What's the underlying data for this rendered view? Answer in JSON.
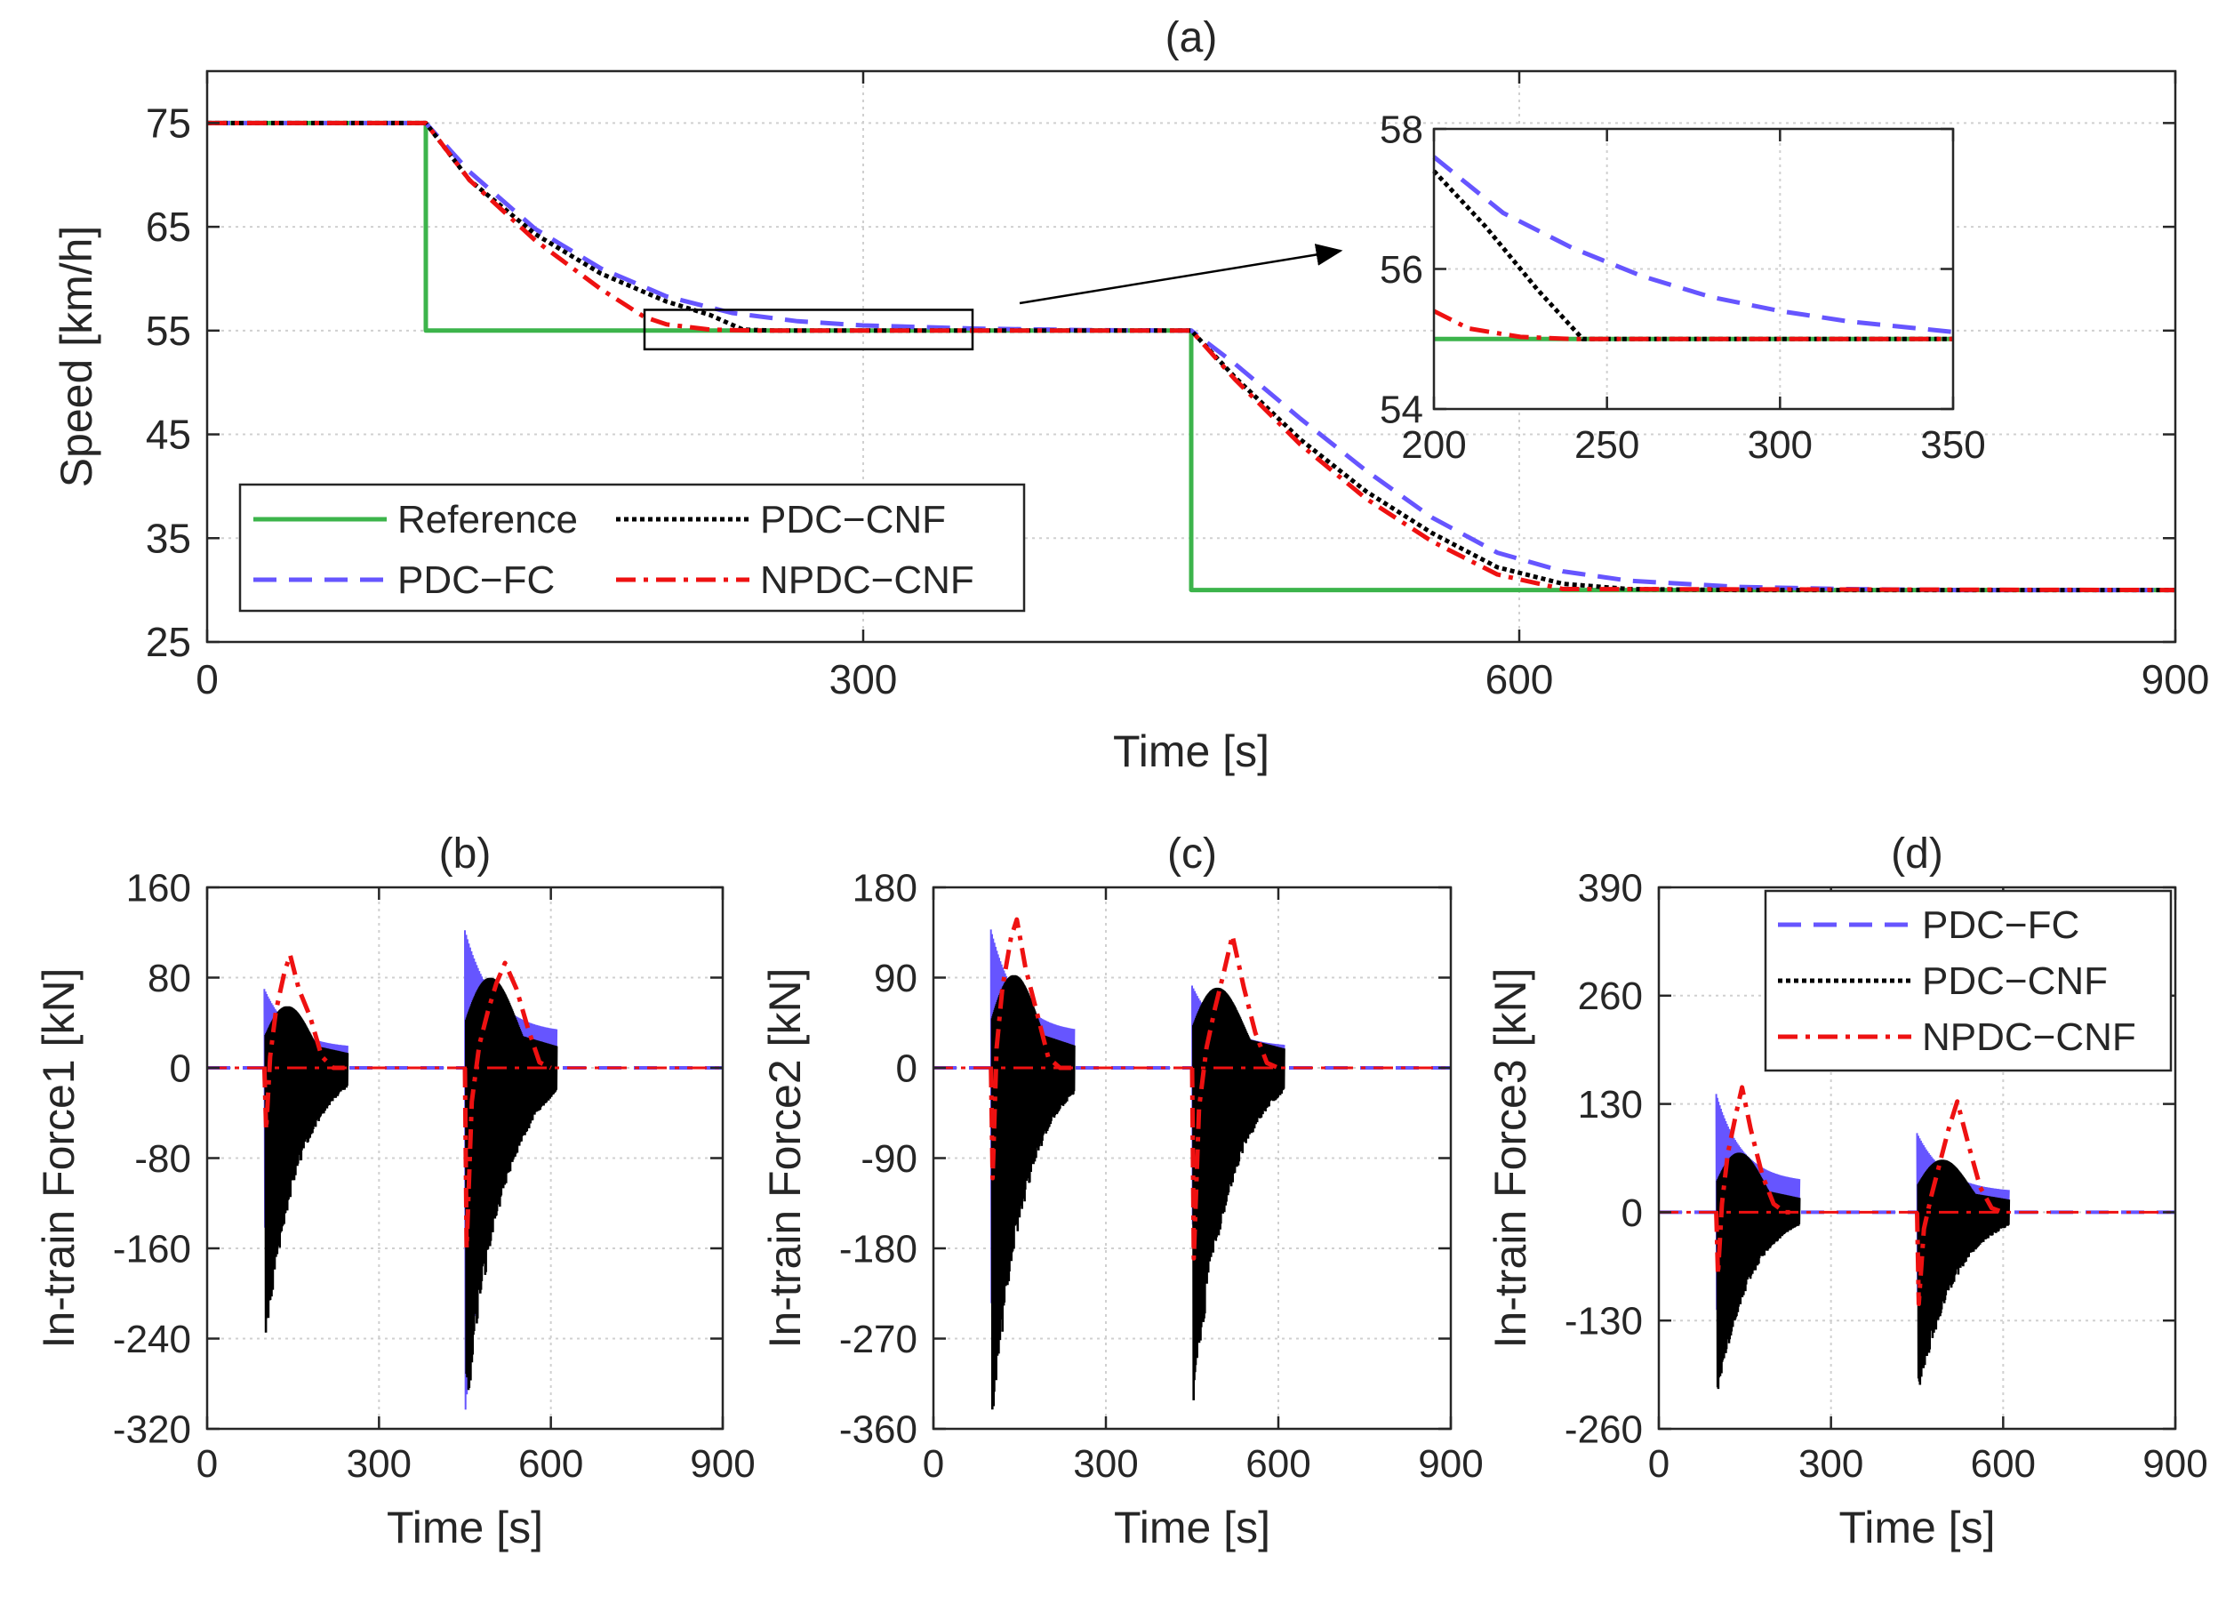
{
  "colors": {
    "reference": "#3cb44b",
    "pdc_fc": "#6655ff",
    "pdc_cnf": "#000000",
    "npdc_cnf": "#ee1111",
    "grid": "#d0d0d0",
    "axis": "#262626"
  },
  "chart_data": [
    {
      "id": "a",
      "type": "line",
      "title": "(a)",
      "xlabel": "Time [s]",
      "ylabel": "Speed [km/h]",
      "xlim": [
        0,
        900
      ],
      "ylim": [
        25,
        80
      ],
      "xticks": [
        0,
        300,
        600,
        900
      ],
      "yticks": [
        25,
        35,
        45,
        55,
        65,
        75
      ],
      "grid": true,
      "legend": {
        "placement": "bottom-left",
        "columns": 2,
        "entries": [
          "Reference",
          "PDC−CNF",
          "PDC−FC",
          "NPDC−CNF"
        ]
      },
      "series": [
        {
          "name": "Reference",
          "style": "solid",
          "color": "reference",
          "x": [
            0,
            100,
            100,
            450,
            450,
            900
          ],
          "y": [
            75,
            75,
            55,
            55,
            30,
            30
          ]
        },
        {
          "name": "PDC−FC",
          "style": "dashed",
          "color": "pdc_fc",
          "x": [
            0,
            100,
            120,
            150,
            180,
            210,
            240,
            270,
            300,
            350,
            400,
            450,
            470,
            500,
            530,
            560,
            590,
            620,
            650,
            700,
            750,
            800,
            900
          ],
          "y": [
            75,
            75,
            70.3,
            64.8,
            61,
            58.3,
            56.7,
            55.9,
            55.5,
            55.2,
            55.05,
            55,
            51.8,
            46.5,
            41.5,
            37,
            33.6,
            31.8,
            30.9,
            30.3,
            30.1,
            30,
            30
          ]
        },
        {
          "name": "PDC−CNF",
          "style": "dotted",
          "color": "pdc_cnf",
          "x": [
            0,
            100,
            120,
            150,
            180,
            210,
            230,
            245,
            260,
            300,
            350,
            400,
            450,
            470,
            500,
            530,
            560,
            590,
            620,
            650,
            700,
            900
          ],
          "y": [
            75,
            75,
            69.5,
            64.3,
            60.5,
            57.8,
            56.5,
            55.1,
            55,
            55,
            55,
            55,
            55,
            50.5,
            44.5,
            39.5,
            35.5,
            32.2,
            30.6,
            30.1,
            30,
            30
          ]
        },
        {
          "name": "NPDC−CNF",
          "style": "dashdot",
          "color": "npdc_cnf",
          "x": [
            0,
            100,
            120,
            150,
            180,
            200,
            210,
            230,
            250,
            300,
            350,
            400,
            450,
            470,
            500,
            530,
            560,
            590,
            620,
            900
          ],
          "y": [
            75,
            75,
            69.5,
            63.7,
            59,
            56.3,
            55.6,
            55.1,
            55,
            55,
            55,
            55,
            55,
            50.3,
            44,
            38.8,
            34.7,
            31.5,
            30.1,
            30
          ]
        }
      ],
      "zoom_box": {
        "x": [
          200,
          350
        ],
        "y": [
          53.2,
          57
        ]
      }
    },
    {
      "id": "a-inset",
      "type": "line",
      "title": "",
      "xlim": [
        200,
        350
      ],
      "ylim": [
        54,
        58
      ],
      "xticks": [
        200,
        250,
        300,
        350
      ],
      "yticks": [
        54,
        56,
        58
      ],
      "grid": true,
      "series": [
        {
          "name": "Reference",
          "style": "solid",
          "color": "reference",
          "x": [
            200,
            350
          ],
          "y": [
            55,
            55
          ]
        },
        {
          "name": "PDC−FC",
          "style": "dashed",
          "color": "pdc_fc",
          "x": [
            200,
            220,
            240,
            260,
            280,
            300,
            320,
            350
          ],
          "y": [
            57.6,
            56.8,
            56.3,
            55.9,
            55.6,
            55.4,
            55.25,
            55.1
          ]
        },
        {
          "name": "PDC−CNF",
          "style": "dotted",
          "color": "pdc_cnf",
          "x": [
            200,
            215,
            230,
            243,
            250,
            350
          ],
          "y": [
            57.4,
            56.6,
            55.7,
            55,
            55,
            55
          ]
        },
        {
          "name": "NPDC−CNF",
          "style": "dashdot",
          "color": "npdc_cnf",
          "x": [
            200,
            210,
            225,
            240,
            350
          ],
          "y": [
            55.4,
            55.15,
            55.03,
            55,
            55
          ]
        }
      ]
    },
    {
      "id": "b",
      "type": "line",
      "title": "(b)",
      "xlabel": "Time [s]",
      "ylabel": "In-train Force1 [kN]",
      "xlim": [
        0,
        900
      ],
      "ylim": [
        -320,
        160
      ],
      "xticks": [
        0,
        300,
        600,
        900
      ],
      "yticks": [
        -320,
        -240,
        -160,
        -80,
        0,
        80,
        160
      ],
      "grid": true,
      "events": [
        {
          "start": 100,
          "end": 245,
          "pdc_cnf_min": -235,
          "pdc_cnf_max": 65,
          "pdc_fc_min": -145,
          "pdc_fc_max": 70,
          "npdc_cnf": {
            "x": [
              100,
              103,
              110,
              120,
              135,
              145,
              160,
              180,
              200,
              220,
              240
            ],
            "y": [
              0,
              -55,
              10,
              50,
              85,
              100,
              70,
              45,
              10,
              0,
              0
            ]
          }
        },
        {
          "start": 450,
          "end": 610,
          "pdc_cnf_min": -300,
          "pdc_cnf_max": 95,
          "pdc_fc_min": -310,
          "pdc_fc_max": 122,
          "npdc_cnf": {
            "x": [
              450,
              453,
              462,
              475,
              490,
              505,
              520,
              540,
              560,
              580,
              600
            ],
            "y": [
              0,
              -160,
              -30,
              20,
              50,
              75,
              93,
              70,
              35,
              5,
              0
            ]
          }
        }
      ]
    },
    {
      "id": "c",
      "type": "line",
      "title": "(c)",
      "xlabel": "Time [s]",
      "ylabel": "In-train Force2 [kN]",
      "xlim": [
        0,
        900
      ],
      "ylim": [
        -360,
        180
      ],
      "xticks": [
        0,
        300,
        600,
        900
      ],
      "yticks": [
        -360,
        -270,
        -180,
        -90,
        0,
        90,
        180
      ],
      "grid": true,
      "events": [
        {
          "start": 100,
          "end": 245,
          "pdc_cnf_min": -345,
          "pdc_cnf_max": 110,
          "pdc_fc_min": -240,
          "pdc_fc_max": 138,
          "npdc_cnf": {
            "x": [
              100,
              103,
              110,
              120,
              135,
              145,
              160,
              180,
              200,
              220,
              240
            ],
            "y": [
              0,
              -110,
              20,
              80,
              130,
              148,
              100,
              55,
              10,
              0,
              0
            ]
          }
        },
        {
          "start": 450,
          "end": 610,
          "pdc_cnf_min": -325,
          "pdc_cnf_max": 95,
          "pdc_fc_min": -160,
          "pdc_fc_max": 82,
          "npdc_cnf": {
            "x": [
              450,
              453,
              462,
              475,
              490,
              505,
              520,
              540,
              560,
              580,
              600
            ],
            "y": [
              0,
              -190,
              -40,
              20,
              60,
              95,
              132,
              80,
              35,
              5,
              0
            ]
          }
        }
      ]
    },
    {
      "id": "d",
      "type": "line",
      "title": "(d)",
      "xlabel": "Time [s]",
      "ylabel": "In-train Force3 [kN]",
      "xlim": [
        0,
        900
      ],
      "ylim": [
        -260,
        390
      ],
      "xticks": [
        0,
        300,
        600,
        900
      ],
      "yticks": [
        -260,
        -130,
        0,
        130,
        260,
        390
      ],
      "grid": true,
      "legend": {
        "placement": "top-right",
        "columns": 1,
        "entries": [
          "PDC−FC",
          "PDC−CNF",
          "NPDC−CNF"
        ]
      },
      "events": [
        {
          "start": 100,
          "end": 245,
          "pdc_cnf_min": -215,
          "pdc_cnf_max": 85,
          "pdc_fc_min": -120,
          "pdc_fc_max": 142,
          "npdc_cnf": {
            "x": [
              100,
              103,
              110,
              120,
              135,
              145,
              160,
              180,
              200,
              220,
              240
            ],
            "y": [
              0,
              -75,
              10,
              70,
              120,
              150,
              100,
              45,
              10,
              0,
              0
            ]
          }
        },
        {
          "start": 450,
          "end": 610,
          "pdc_cnf_min": -220,
          "pdc_cnf_max": 75,
          "pdc_fc_min": -110,
          "pdc_fc_max": 95,
          "npdc_cnf": {
            "x": [
              450,
              453,
              462,
              475,
              490,
              505,
              520,
              540,
              560,
              580,
              600
            ],
            "y": [
              0,
              -110,
              -20,
              20,
              60,
              100,
              133,
              80,
              30,
              5,
              0
            ]
          }
        }
      ]
    }
  ]
}
